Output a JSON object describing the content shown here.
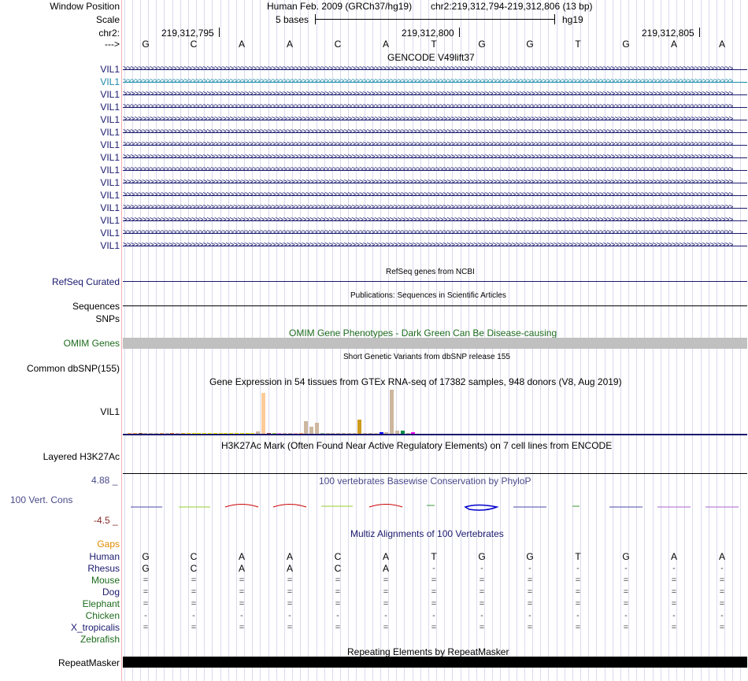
{
  "header": {
    "window_position_label": "Window Position",
    "scale_label": "Scale",
    "chrom_label": "chr2:",
    "strand_label": "--->",
    "assembly": "Human Feb. 2009 (GRCh37/hg19)",
    "region": "chr2:219,312,794-219,312,806 (13 bp)",
    "scale_text": "5 bases",
    "db": "hg19",
    "positions": [
      "219,312,795",
      "219,312,800",
      "219,312,805"
    ]
  },
  "sequence": [
    "G",
    "C",
    "A",
    "A",
    "C",
    "A",
    "T",
    "G",
    "G",
    "T",
    "G",
    "A",
    "A"
  ],
  "gencode": {
    "title": "GENCODE V49lift37",
    "items": [
      "VIL1",
      "VIL1",
      "VIL1",
      "VIL1",
      "VIL1",
      "VIL1",
      "VIL1",
      "VIL1",
      "VIL1",
      "VIL1",
      "VIL1",
      "VIL1",
      "VIL1",
      "VIL1",
      "VIL1"
    ]
  },
  "refseq": {
    "title": "RefSeq genes from NCBI",
    "label": "RefSeq Curated"
  },
  "publications": {
    "title": "Publications: Sequences in Scientific Articles",
    "label": "Sequences"
  },
  "snps": {
    "label": "SNPs"
  },
  "omim": {
    "title": "OMIM Gene Phenotypes - Dark Green Can Be Disease-causing",
    "label": "OMIM Genes"
  },
  "dbsnp": {
    "title": "Short Genetic Variants from dbSNP release 155",
    "label": "Common dbSNP(155)"
  },
  "gtex": {
    "title": "Gene Expression in 54 tissues from GTEx RNA-seq of 17382 samples, 948 donors (V8, Aug 2019)",
    "label": "VIL1",
    "values": [
      0.4,
      0.8,
      0.3,
      1.0,
      0.5,
      0.2,
      0.2,
      0.3,
      0.4,
      0.3,
      0.8,
      0.4,
      0.3,
      0.4,
      0.3,
      0.5,
      0.4,
      0.3,
      0.4,
      0.5,
      0.3,
      0.4,
      0.3,
      0.6,
      5.0,
      100.0,
      0.5,
      0.4,
      0.3,
      0.4,
      0.5,
      0.3,
      0.4,
      31.0,
      18.0,
      26.0,
      0.4,
      0.3,
      0.3,
      0.3,
      0.4,
      0.3,
      0.5,
      35.0,
      0.4,
      0.3,
      0.4,
      4.0,
      3.5,
      107.0,
      8.0,
      7.0,
      2.0,
      4.0
    ],
    "colors": [
      "#ffa54f",
      "#ee9a49",
      "#8b5a2b",
      "#cdb79e",
      "#cdb79e",
      "#cdb79e",
      "#ee9a49",
      "#cdb79e",
      "#d2691e",
      "#cdb79e",
      "#eeb422",
      "#ffd700",
      "#eeee00",
      "#eeee00",
      "#eeee00",
      "#eeee00",
      "#eeee00",
      "#eeee00",
      "#eeee00",
      "#eeee00",
      "#eeee00",
      "#eeee00",
      "#eeee00",
      "#eeee00",
      "#cdb79e",
      "#ffcc99",
      "#8b3a3a",
      "#9acd32",
      "#ee82ee",
      "#cdb79e",
      "#cdb79e",
      "#ffb6c1",
      "#ffa54f",
      "#cdb79e",
      "#cdb79e",
      "#cdb79e",
      "#8fbc8f",
      "#cdb79e",
      "#cdb79e",
      "#cdb79e",
      "#cdb79e",
      "#cdb79e",
      "#cdb79e",
      "#cd9b1d",
      "#cdb79e",
      "#cdb79e",
      "#eecfa1",
      "#0000ff",
      "#cdb79e",
      "#cdb79e",
      "#cdb79e",
      "#008b45",
      "#cdb79e",
      "#ee00ee"
    ]
  },
  "h3k27ac": {
    "title": "H3K27Ac Mark (Often Found Near Active Regulatory Elements) on 7 cell lines from ENCODE",
    "label": "Layered H3K27Ac"
  },
  "phylop": {
    "title": "100 vertebrates Basewise Conservation by PhyloP",
    "label": "100 Vert. Cons",
    "max": "4.88 _",
    "min": "-4.5 _"
  },
  "multiz": {
    "title": "Multiz Alignments of 100 Vertebrates",
    "gaps_label": "Gaps",
    "species": [
      {
        "name": "Human",
        "row": [
          "G",
          "C",
          "A",
          "A",
          "C",
          "A",
          "T",
          "G",
          "G",
          "T",
          "G",
          "A",
          "A"
        ]
      },
      {
        "name": "Rhesus",
        "row": [
          "G",
          "C",
          "A",
          "A",
          "C",
          "A",
          "-",
          "-",
          "-",
          "-",
          "-",
          "-",
          "-"
        ]
      },
      {
        "name": "Mouse",
        "row": [
          "=",
          "=",
          "=",
          "=",
          "=",
          "=",
          "=",
          "=",
          "=",
          "=",
          "=",
          "=",
          "="
        ]
      },
      {
        "name": "Dog",
        "row": [
          "=",
          "=",
          "=",
          "=",
          "=",
          "=",
          "=",
          "=",
          "=",
          "=",
          "=",
          "=",
          "="
        ]
      },
      {
        "name": "Elephant",
        "row": [
          "=",
          "=",
          "=",
          "=",
          "=",
          "=",
          "=",
          "=",
          "=",
          "=",
          "=",
          "=",
          "="
        ]
      },
      {
        "name": "Chicken",
        "row": [
          "-",
          "-",
          "-",
          "-",
          "-",
          "-",
          "-",
          "-",
          "-",
          "-",
          "-",
          "-",
          "-"
        ]
      },
      {
        "name": "X_tropicalis",
        "row": [
          "=",
          "=",
          "=",
          "=",
          "=",
          "=",
          "=",
          "=",
          "=",
          "=",
          "=",
          "=",
          "="
        ]
      },
      {
        "name": "Zebrafish",
        "row": []
      }
    ]
  },
  "repeatmasker": {
    "title": "Repeating Elements by RepeatMasker",
    "label": "RepeatMasker"
  },
  "colors": {
    "gencode": "#1a1a6e",
    "selected_transcript": "#1a8aa8",
    "omim": "#c0c0c0",
    "phylop_up": "#cc0000",
    "phylop_down": "#1a1a88",
    "repeat": "#000000"
  }
}
